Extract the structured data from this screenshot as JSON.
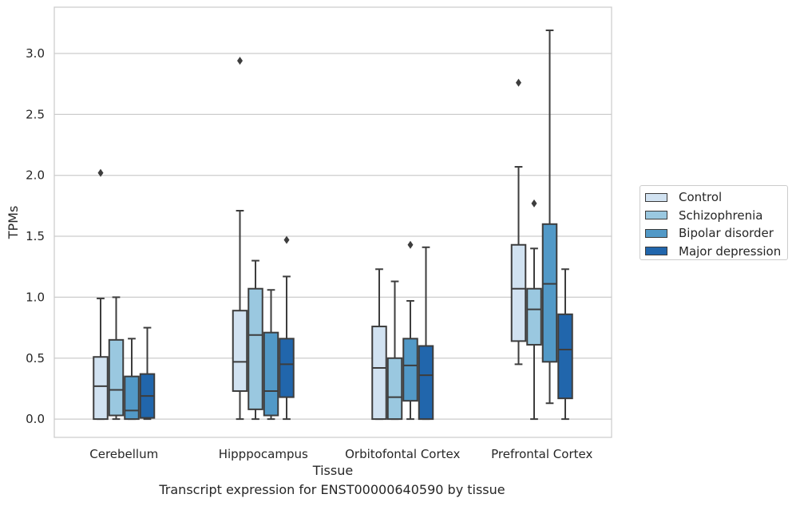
{
  "caption": "Transcript expression for ENST00000640590 by tissue",
  "chart_data": {
    "type": "boxplot",
    "xlabel": "Tissue",
    "ylabel": "TPMs",
    "ylim": [
      -0.15,
      3.38
    ],
    "yticks": [
      "0.0",
      "0.5",
      "1.0",
      "1.5",
      "2.0",
      "2.5",
      "3.0"
    ],
    "ytick_values": [
      0,
      0.5,
      1.0,
      1.5,
      2.0,
      2.5,
      3.0
    ],
    "grid": true,
    "legend_position": "right",
    "categories": [
      "Cerebellum",
      "Hipppocampus",
      "Orbitofontal Cortex",
      "Prefrontal Cortex"
    ],
    "series": [
      {
        "name": "Control",
        "color": "#d1e2f1",
        "boxes": [
          {
            "min": 0.0,
            "q1": 0.0,
            "median": 0.27,
            "q3": 0.51,
            "max": 0.99,
            "outliers": [
              2.02
            ]
          },
          {
            "min": 0.0,
            "q1": 0.23,
            "median": 0.47,
            "q3": 0.89,
            "max": 1.71,
            "outliers": [
              2.94
            ]
          },
          {
            "min": 0.0,
            "q1": 0.0,
            "median": 0.42,
            "q3": 0.76,
            "max": 1.23,
            "outliers": []
          },
          {
            "min": 0.45,
            "q1": 0.64,
            "median": 1.07,
            "q3": 1.43,
            "max": 2.07,
            "outliers": [
              2.76
            ]
          }
        ]
      },
      {
        "name": "Schizophrenia",
        "color": "#9ac8e0",
        "boxes": [
          {
            "min": 0.0,
            "q1": 0.03,
            "median": 0.24,
            "q3": 0.65,
            "max": 1.0,
            "outliers": []
          },
          {
            "min": 0.0,
            "q1": 0.08,
            "median": 0.69,
            "q3": 1.07,
            "max": 1.3,
            "outliers": []
          },
          {
            "min": 0.0,
            "q1": 0.0,
            "median": 0.18,
            "q3": 0.5,
            "max": 1.13,
            "outliers": []
          },
          {
            "min": 0.0,
            "q1": 0.61,
            "median": 0.9,
            "q3": 1.07,
            "max": 1.4,
            "outliers": [
              1.77
            ]
          }
        ]
      },
      {
        "name": "Bipolar disorder",
        "color": "#5299c7",
        "boxes": [
          {
            "min": 0.0,
            "q1": 0.0,
            "median": 0.07,
            "q3": 0.35,
            "max": 0.66,
            "outliers": []
          },
          {
            "min": 0.0,
            "q1": 0.03,
            "median": 0.23,
            "q3": 0.71,
            "max": 1.06,
            "outliers": []
          },
          {
            "min": 0.0,
            "q1": 0.15,
            "median": 0.44,
            "q3": 0.66,
            "max": 0.97,
            "outliers": [
              1.43
            ]
          },
          {
            "min": 0.13,
            "q1": 0.47,
            "median": 1.11,
            "q3": 1.6,
            "max": 3.19,
            "outliers": []
          }
        ]
      },
      {
        "name": "Major depression",
        "color": "#2166ac",
        "boxes": [
          {
            "min": 0.0,
            "q1": 0.01,
            "median": 0.19,
            "q3": 0.37,
            "max": 0.75,
            "outliers": []
          },
          {
            "min": 0.0,
            "q1": 0.18,
            "median": 0.45,
            "q3": 0.66,
            "max": 1.17,
            "outliers": [
              1.47
            ]
          },
          {
            "min": 0.0,
            "q1": 0.0,
            "median": 0.36,
            "q3": 0.6,
            "max": 1.41,
            "outliers": []
          },
          {
            "min": 0.0,
            "q1": 0.17,
            "median": 0.57,
            "q3": 0.86,
            "max": 1.23,
            "outliers": []
          }
        ]
      }
    ]
  }
}
